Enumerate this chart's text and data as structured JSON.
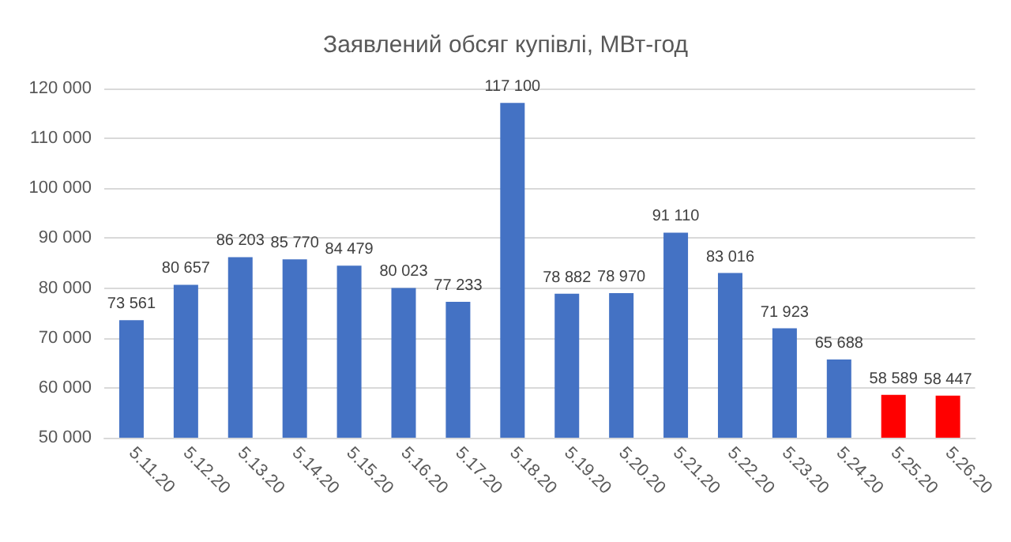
{
  "chart_data": {
    "type": "bar",
    "title": "Заявлений обсяг купівлі, МВт-год",
    "categories": [
      "5.11.20",
      "5.12.20",
      "5.13.20",
      "5.14.20",
      "5.15.20",
      "5.16.20",
      "5.17.20",
      "5.18.20",
      "5.19.20",
      "5.20.20",
      "5.21.20",
      "5.22.20",
      "5.23.20",
      "5.24.20",
      "5.25.20",
      "5.26.20"
    ],
    "values": [
      73561,
      80657,
      86203,
      85770,
      84479,
      80023,
      77233,
      117100,
      78882,
      78970,
      91110,
      83016,
      71923,
      65688,
      58589,
      58447
    ],
    "value_labels": [
      "73 561",
      "80 657",
      "86 203",
      "85 770",
      "84 479",
      "80 023",
      "77 233",
      "117 100",
      "78 882",
      "78 970",
      "91 110",
      "83 016",
      "71 923",
      "65 688",
      "58 589",
      "58 447"
    ],
    "colors": [
      "#4472c4",
      "#4472c4",
      "#4472c4",
      "#4472c4",
      "#4472c4",
      "#4472c4",
      "#4472c4",
      "#4472c4",
      "#4472c4",
      "#4472c4",
      "#4472c4",
      "#4472c4",
      "#4472c4",
      "#4472c4",
      "#ff0000",
      "#ff0000"
    ],
    "ylim": [
      50000,
      120000
    ],
    "yticks": [
      {
        "value": 50000,
        "label": "50 000"
      },
      {
        "value": 60000,
        "label": "60 000"
      },
      {
        "value": 70000,
        "label": "70 000"
      },
      {
        "value": 80000,
        "label": "80 000"
      },
      {
        "value": 90000,
        "label": "90 000"
      },
      {
        "value": 100000,
        "label": "100 000"
      },
      {
        "value": 110000,
        "label": "110 000"
      },
      {
        "value": 120000,
        "label": "120 000"
      }
    ],
    "grid": "y"
  }
}
